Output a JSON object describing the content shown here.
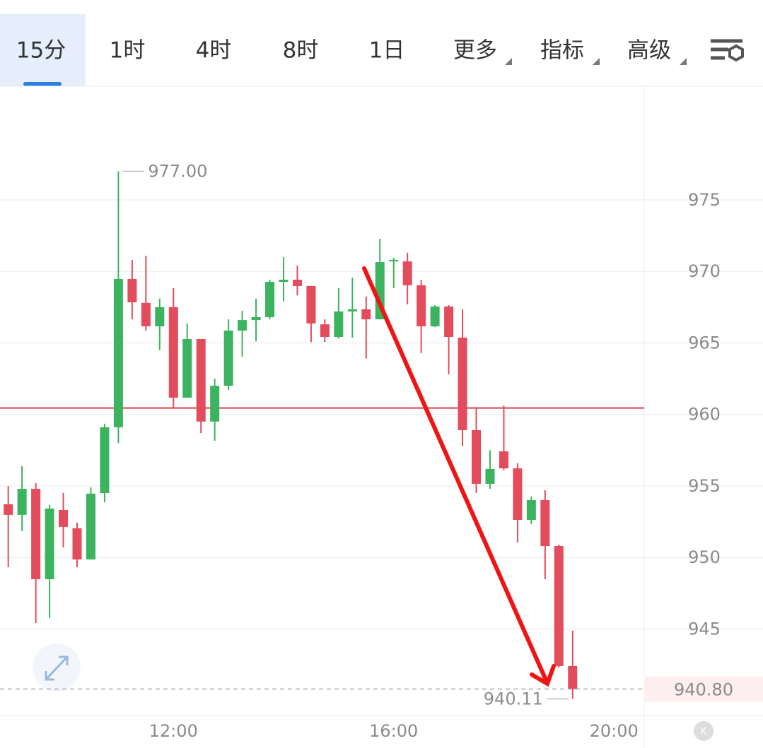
{
  "tabs": [
    "15分",
    "1时",
    "4时",
    "8时",
    "1日",
    "更多",
    "指标",
    "高级"
  ],
  "active_tab": 0,
  "chart_data": {
    "type": "candlestick",
    "x": [
      "09:00",
      "09:15",
      "09:30",
      "09:45",
      "10:00",
      "10:15",
      "10:30",
      "10:45",
      "11:00",
      "11:15",
      "11:30",
      "11:45",
      "12:00",
      "12:15",
      "12:30",
      "12:45",
      "13:00",
      "13:15",
      "13:30",
      "13:45",
      "14:00",
      "14:15",
      "14:30",
      "14:45",
      "15:00",
      "15:15",
      "15:30",
      "15:45",
      "16:00",
      "16:15",
      "16:30",
      "16:45",
      "17:00",
      "17:15",
      "17:30",
      "17:45",
      "18:00",
      "18:15",
      "18:30",
      "18:45",
      "19:00",
      "19:15"
    ],
    "open": [
      953.72,
      952.98,
      954.8,
      948.48,
      953.32,
      952.04,
      949.86,
      954.5,
      959.1,
      969.47,
      967.8,
      966.16,
      967.5,
      961.17,
      965.27,
      959.5,
      962.0,
      965.86,
      966.6,
      966.8,
      969.27,
      969.42,
      968.98,
      966.3,
      965.42,
      967.2,
      967.35,
      966.65,
      970.7,
      970.7,
      969.03,
      966.16,
      967.54,
      965.37,
      958.9,
      955.15,
      957.42,
      956.23,
      952.63,
      954.01,
      950.8,
      942.41
    ],
    "high": [
      954.99,
      956.38,
      955.2,
      953.67,
      954.51,
      952.43,
      954.9,
      959.35,
      977.0,
      970.8,
      971.1,
      968.1,
      968.83,
      966.36,
      965.27,
      962.5,
      966.65,
      967.25,
      968.1,
      969.42,
      971.0,
      970.4,
      968.98,
      966.65,
      968.83,
      969.57,
      968.23,
      972.28,
      970.95,
      971.3,
      969.42,
      967.64,
      967.64,
      967.35,
      960.48,
      957.5,
      960.63,
      956.58,
      954.26,
      954.7,
      950.9,
      944.88
    ],
    "low": [
      949.32,
      951.84,
      945.42,
      945.77,
      950.7,
      949.32,
      949.86,
      953.86,
      958.0,
      966.65,
      965.86,
      964.5,
      960.48,
      961.17,
      958.7,
      958.16,
      961.7,
      964.04,
      965.1,
      966.65,
      967.9,
      968.33,
      965.07,
      965.07,
      965.3,
      965.37,
      963.9,
      966.65,
      968.83,
      967.7,
      964.28,
      966.1,
      962.8,
      957.77,
      954.51,
      954.8,
      956.1,
      951.05,
      952.33,
      948.48,
      942.3,
      940.11
    ],
    "close": [
      952.98,
      954.8,
      948.48,
      953.42,
      952.14,
      949.86,
      954.46,
      959.1,
      969.47,
      967.84,
      966.16,
      967.5,
      961.17,
      965.27,
      959.5,
      962.0,
      965.86,
      966.6,
      966.8,
      969.27,
      969.42,
      968.98,
      966.36,
      965.42,
      967.2,
      967.35,
      966.65,
      970.65,
      970.8,
      969.03,
      966.16,
      967.54,
      965.42,
      958.9,
      955.15,
      956.19,
      956.23,
      952.63,
      954.01,
      950.8,
      942.41,
      940.8
    ],
    "up_color": "#3cb35f",
    "down_color": "#e24c5c",
    "xlim": [
      "08:51",
      "20:33"
    ],
    "xticks": [
      "12:00",
      "16:00",
      "20:00"
    ],
    "ylim": [
      938.95,
      982.95
    ],
    "yticks": [
      945,
      950,
      955,
      960,
      965,
      970,
      975
    ],
    "grid": true,
    "reference_line": 960.45,
    "reference_color": "#d9404a",
    "high_label": "977.00",
    "low_label": "940.11",
    "last_label": "940.80"
  }
}
